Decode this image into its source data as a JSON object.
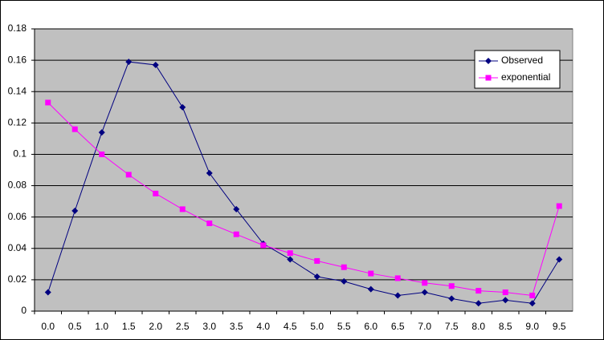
{
  "chart_data": {
    "type": "line",
    "categories": [
      "0.0",
      "0.5",
      "1.0",
      "1.5",
      "2.0",
      "2.5",
      "3.0",
      "3.5",
      "4.0",
      "4.5",
      "5.0",
      "5.5",
      "6.0",
      "6.5",
      "7.0",
      "7.5",
      "8.0",
      "8.5",
      "9.0",
      "9.5"
    ],
    "series": [
      {
        "name": "Observed",
        "color": "#000080",
        "marker": "diamond",
        "values": [
          0.012,
          0.064,
          0.114,
          0.159,
          0.157,
          0.13,
          0.088,
          0.065,
          0.043,
          0.033,
          0.022,
          0.019,
          0.014,
          0.01,
          0.012,
          0.008,
          0.005,
          0.007,
          0.005,
          0.033
        ]
      },
      {
        "name": "exponential",
        "color": "#ff00ff",
        "marker": "square",
        "values": [
          0.133,
          0.116,
          0.1,
          0.087,
          0.075,
          0.065,
          0.056,
          0.049,
          0.042,
          0.037,
          0.032,
          0.028,
          0.024,
          0.021,
          0.018,
          0.016,
          0.013,
          0.012,
          0.01,
          0.067
        ]
      }
    ],
    "ylim": [
      0,
      0.18
    ],
    "yticks": [
      0,
      0.02,
      0.04,
      0.06,
      0.08,
      0.1,
      0.12,
      0.14,
      0.16,
      0.18
    ],
    "grid": true,
    "legend": "top-right"
  }
}
